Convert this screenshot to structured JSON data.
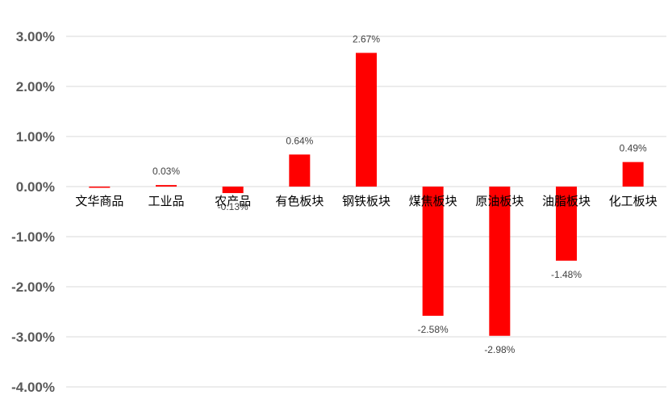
{
  "chart_data": {
    "type": "bar",
    "categories": [
      "文华商品",
      "工业品",
      "农产品",
      "有色板块",
      "钢铁板块",
      "煤焦板块",
      "原油板块",
      "油脂板块",
      "化工板块"
    ],
    "values": [
      -0.02,
      0.03,
      -0.13,
      0.64,
      2.67,
      -2.58,
      -2.98,
      -1.48,
      0.49
    ],
    "data_labels": [
      "",
      "0.03%",
      "-0.13%",
      "0.64%",
      "2.67%",
      "-2.58%",
      "-2.98%",
      "-1.48%",
      "0.49%"
    ],
    "yticks": [
      "3.00%",
      "2.00%",
      "1.00%",
      "0.00%",
      "-1.00%",
      "-2.00%",
      "-3.00%",
      "-4.00%"
    ],
    "ylim": [
      -4,
      3
    ],
    "grid": true,
    "bar_color": "#ff0000",
    "grid_color": "#d9d9d9"
  }
}
